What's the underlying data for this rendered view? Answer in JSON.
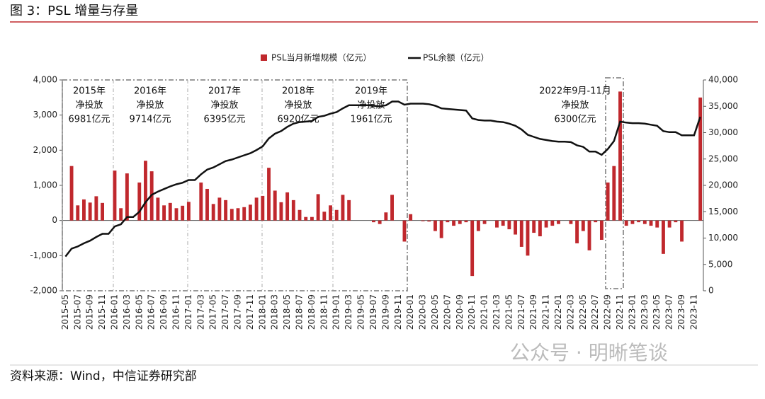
{
  "header": {
    "title": "图 3：PSL 增量与存量"
  },
  "footer": {
    "source": "资料来源：Wind，中信证券研究部",
    "watermark": "公众号 · 明晰笔谈"
  },
  "chart_data": {
    "type": "bar",
    "categories": [
      "2015-05",
      null,
      "2015-07",
      null,
      "2015-09",
      null,
      "2015-11",
      null,
      "2016-01",
      null,
      "2016-03",
      null,
      "2016-05",
      null,
      "2016-07",
      null,
      "2016-09",
      null,
      "2016-11",
      null,
      "2017-01",
      null,
      "2017-03",
      null,
      "2017-05",
      null,
      "2017-07",
      null,
      "2017-09",
      null,
      "2017-11",
      null,
      "2018-01",
      null,
      "2018-03",
      null,
      "2018-05",
      null,
      "2018-07",
      null,
      "2018-09",
      null,
      "2018-11",
      null,
      "2019-01",
      null,
      "2019-03",
      null,
      "2019-05",
      null,
      "2019-07",
      null,
      "2019-09",
      null,
      "2019-11",
      null,
      "2020-01",
      null,
      "2020-03",
      null,
      "2020-05",
      null,
      "2020-07",
      null,
      "2020-09",
      null,
      "2020-11",
      null,
      "2021-01",
      null,
      "2021-03",
      null,
      "2021-05",
      null,
      "2021-07",
      null,
      "2021-09",
      null,
      "2021-11",
      null,
      "2022-01",
      null,
      "2022-03",
      null,
      "2022-05",
      null,
      "2022-07",
      null,
      "2022-09",
      null,
      "2022-11",
      null,
      "2023-01",
      null,
      "2023-03",
      null,
      "2023-05",
      null,
      "2023-07",
      null,
      "2023-09",
      null,
      "2023-11",
      null
    ],
    "series": [
      {
        "name": "PSL当月新增规模（亿元）",
        "type": "bar",
        "color": "#c0282d",
        "values": [
          0,
          1550,
          430,
          600,
          510,
          690,
          500,
          0,
          1420,
          350,
          1340,
          0,
          1080,
          1700,
          1400,
          650,
          430,
          500,
          350,
          420,
          530,
          0,
          1080,
          900,
          470,
          650,
          580,
          330,
          350,
          380,
          450,
          650,
          700,
          1500,
          850,
          520,
          800,
          580,
          300,
          100,
          100,
          750,
          250,
          430,
          300,
          730,
          580,
          0,
          0,
          0,
          -50,
          -100,
          230,
          730,
          0,
          -600,
          180,
          0,
          -20,
          -30,
          -300,
          -500,
          -50,
          -150,
          -100,
          -50,
          -1580,
          -300,
          -100,
          0,
          -200,
          -150,
          -250,
          -400,
          -750,
          -1000,
          -350,
          -450,
          -200,
          -150,
          -100,
          0,
          -100,
          -650,
          -300,
          -850,
          -50,
          -550,
          1080,
          1550,
          3670,
          -150,
          -100,
          -50,
          -100,
          -150,
          -200,
          -950,
          -200,
          -50,
          -600,
          0,
          0,
          3500
        ]
      },
      {
        "name": "PSL余额（亿元）",
        "type": "line",
        "color": "#111111",
        "axis": "y2",
        "values": [
          6500,
          8000,
          8400,
          9000,
          9500,
          10200,
          10800,
          10800,
          12200,
          12600,
          14000,
          14000,
          15000,
          16800,
          18200,
          18800,
          19300,
          19800,
          20200,
          20500,
          21000,
          21000,
          22100,
          23000,
          23400,
          24000,
          24600,
          24900,
          25300,
          25700,
          26100,
          26700,
          27400,
          28900,
          29800,
          30300,
          31100,
          31700,
          32000,
          32100,
          32200,
          33000,
          33200,
          33600,
          33900,
          34600,
          35200,
          35200,
          35200,
          35200,
          35100,
          35000,
          35200,
          35900,
          35900,
          35300,
          35500,
          35500,
          35500,
          35400,
          35100,
          34600,
          34500,
          34400,
          34300,
          34200,
          32700,
          32400,
          32300,
          32300,
          32100,
          32000,
          31700,
          31300,
          30600,
          29600,
          29200,
          28800,
          28600,
          28400,
          28300,
          28300,
          28200,
          27600,
          27300,
          26400,
          26400,
          25800,
          26900,
          28400,
          32100,
          31900,
          31800,
          31800,
          31700,
          31500,
          31300,
          30300,
          30100,
          30100,
          29500,
          29500,
          29500,
          33000
        ]
      }
    ],
    "ylim": [
      -2000,
      4000
    ],
    "yticks": [
      {
        "value": -2000,
        "label": "-2,000"
      },
      {
        "value": -1000,
        "label": "-1,000"
      },
      0,
      {
        "value": 1000,
        "label": "1,000"
      },
      {
        "value": 2000,
        "label": "2,000"
      },
      {
        "value": 3000,
        "label": "3,000"
      },
      {
        "value": 4000,
        "label": "4,000"
      }
    ],
    "y2lim": [
      0,
      40000
    ],
    "y2ticks": [
      0,
      {
        "value": 5000,
        "label": "5,000"
      },
      {
        "value": 10000,
        "label": "10,000"
      },
      {
        "value": 15000,
        "label": "15,000"
      },
      {
        "value": 20000,
        "label": "20,000"
      },
      {
        "value": 25000,
        "label": "25,000"
      },
      {
        "value": 30000,
        "label": "30,000"
      },
      {
        "value": 35000,
        "label": "35,000"
      },
      {
        "value": 40000,
        "label": "40,000"
      }
    ],
    "legend": "top",
    "annotations": [
      {
        "lines": [
          "2015年",
          "净投放",
          "6981亿元"
        ]
      },
      {
        "lines": [
          "2016年",
          "净投放",
          "9714亿元"
        ]
      },
      {
        "lines": [
          "2017年",
          "净投放",
          "6395亿元"
        ]
      },
      {
        "lines": [
          "2018年",
          "净投放",
          "6920亿元"
        ]
      },
      {
        "lines": [
          "2019年",
          "净投放",
          "1961亿元"
        ]
      },
      {
        "lines": [
          "2022年9月-11月",
          "净投放",
          "6300亿元"
        ]
      }
    ]
  }
}
